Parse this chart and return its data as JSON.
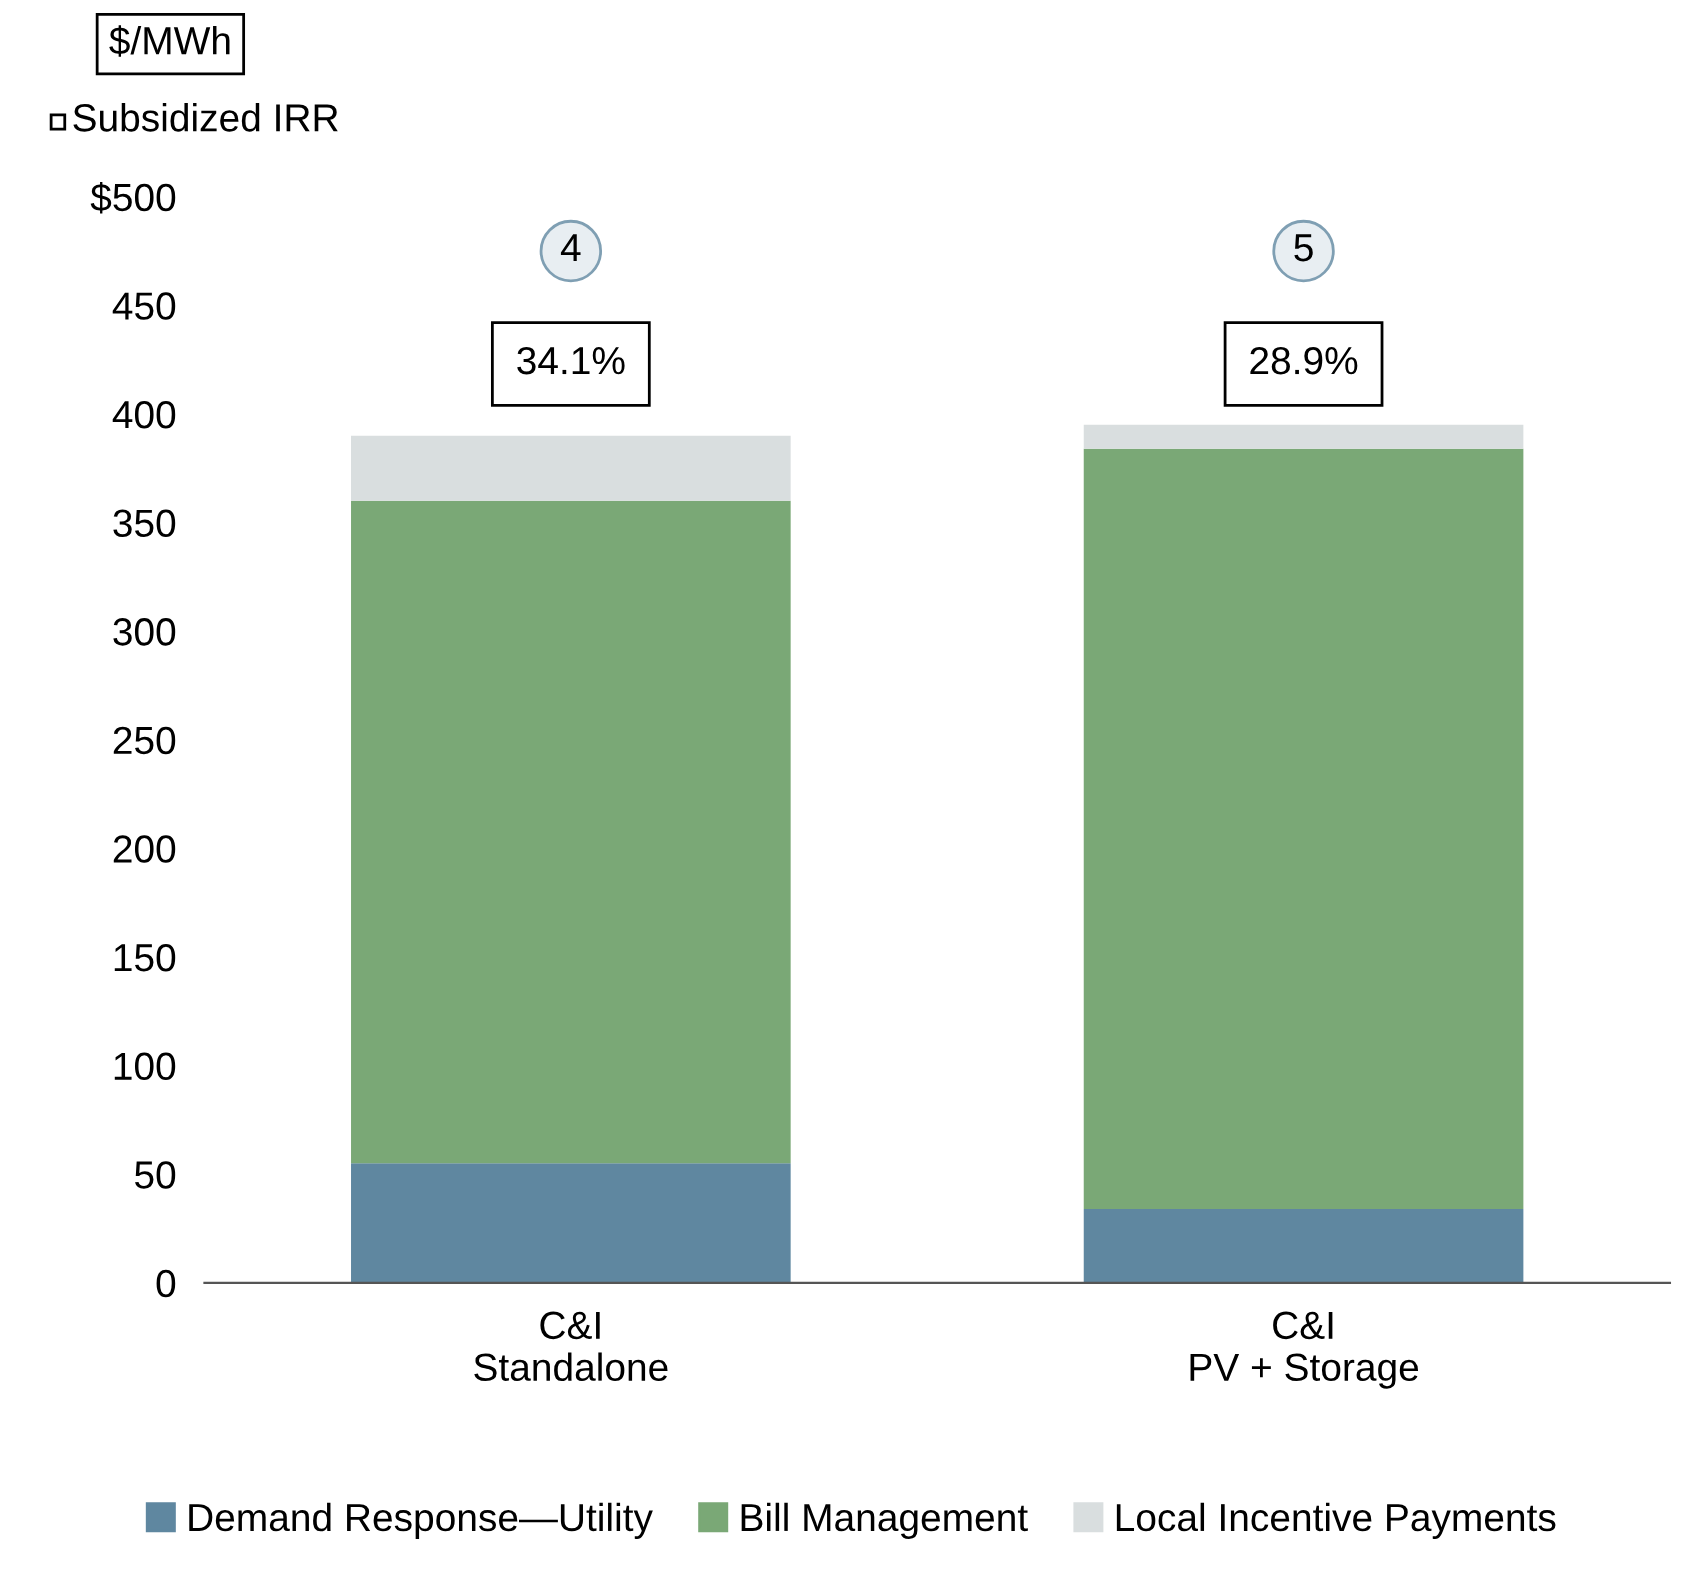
{
  "chart_data": {
    "type": "bar",
    "stacked": true,
    "ylabel": "$/MWh",
    "categories": [
      "C&I\nStandalone",
      "C&I\nPV + Storage"
    ],
    "series": [
      {
        "name": "Demand Response—Utility",
        "color": "#5f87a0",
        "values": [
          55,
          34
        ]
      },
      {
        "name": "Bill Management",
        "color": "#7aa876",
        "values": [
          305,
          350
        ]
      },
      {
        "name": "Local Incentive Payments",
        "color": "#d9dedf",
        "values": [
          30,
          11
        ]
      }
    ],
    "ylim": [
      0,
      500
    ],
    "yticks": [
      0,
      50,
      100,
      150,
      200,
      250,
      300,
      350,
      400,
      450,
      {
        "value": 500,
        "label": "$500"
      }
    ],
    "grid": false,
    "legend": "bottom",
    "annotations": [
      "Subsidized IRR",
      "4",
      "5",
      "34.1%",
      "28.9%"
    ]
  }
}
